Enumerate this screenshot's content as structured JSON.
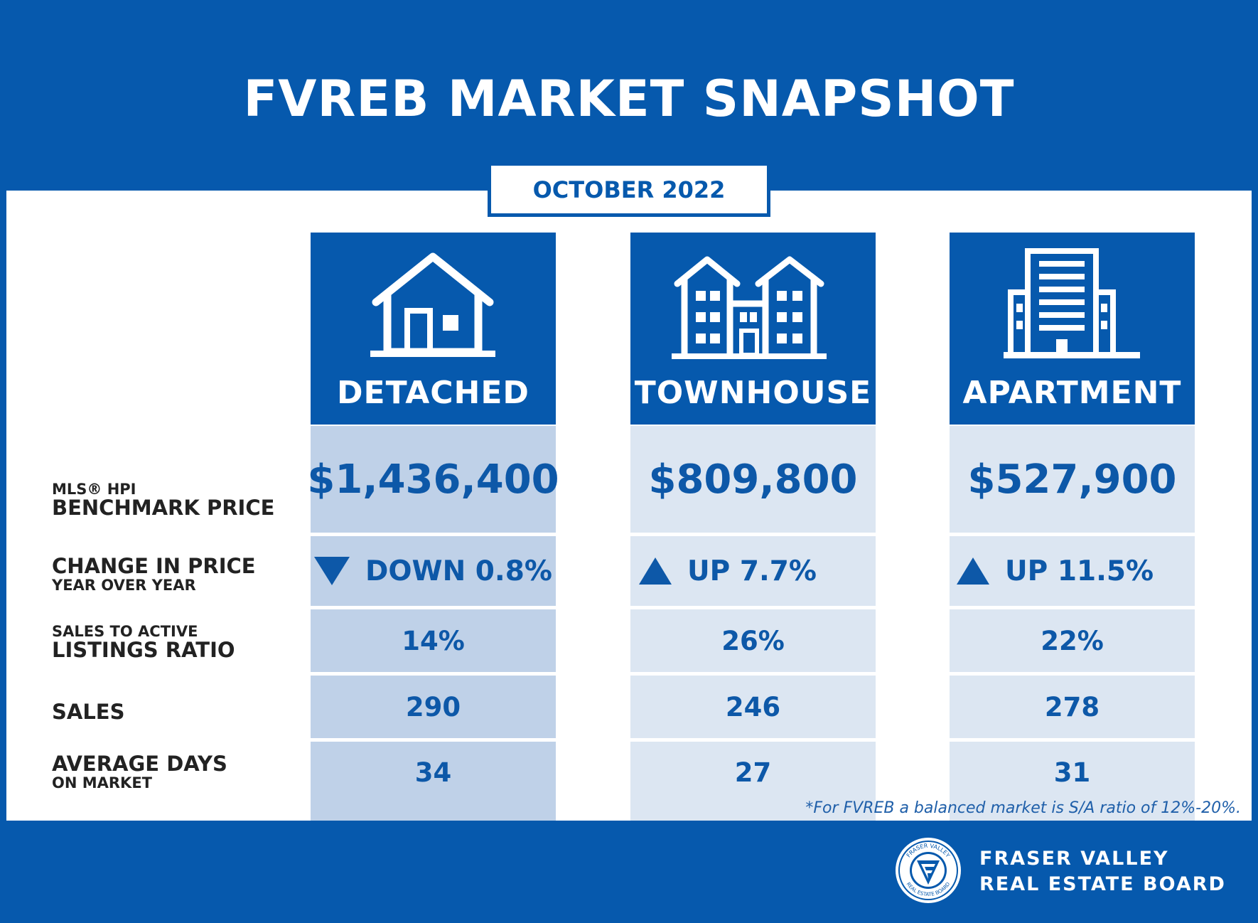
{
  "title": "FVREB MARKET SNAPSHOT",
  "date": "OCTOBER 2022",
  "row_labels": {
    "benchmark_small": "MLS® HPI",
    "benchmark_large": "BENCHMARK PRICE",
    "change_large": "CHANGE IN PRICE",
    "change_small": "YEAR OVER YEAR",
    "ratio_small": "SALES TO ACTIVE",
    "ratio_large": "LISTINGS RATIO",
    "sales": "SALES",
    "days_large": "AVERAGE DAYS",
    "days_small": "ON MARKET"
  },
  "columns": [
    {
      "name": "DETACHED",
      "icon": "house-icon",
      "price": "$1,436,400",
      "direction": "down",
      "change": "DOWN 0.8%",
      "ratio": "14%",
      "sales": "290",
      "days": "34"
    },
    {
      "name": "TOWNHOUSE",
      "icon": "townhouse-icon",
      "price": "$809,800",
      "direction": "up",
      "change": "UP 7.7%",
      "ratio": "26%",
      "sales": "246",
      "days": "27"
    },
    {
      "name": "APARTMENT",
      "icon": "apartment-building-icon",
      "price": "$527,900",
      "direction": "up",
      "change": "UP 11.5%",
      "ratio": "22%",
      "sales": "278",
      "days": "31"
    }
  ],
  "footnote": "*For FVREB a balanced market is S/A ratio of 12%-20%.",
  "footer": {
    "line1": "FRASER VALLEY",
    "line2": "REAL ESTATE BOARD",
    "logo_text_top": "FRASER VALLEY",
    "logo_text_bottom": "REAL ESTATE BOARD",
    "logo_icon": "fvreb-logo-icon"
  },
  "colors": {
    "brand_blue": "#0659ad",
    "cell_detached": "#bfd1e8",
    "cell_other": "#dce6f2"
  }
}
